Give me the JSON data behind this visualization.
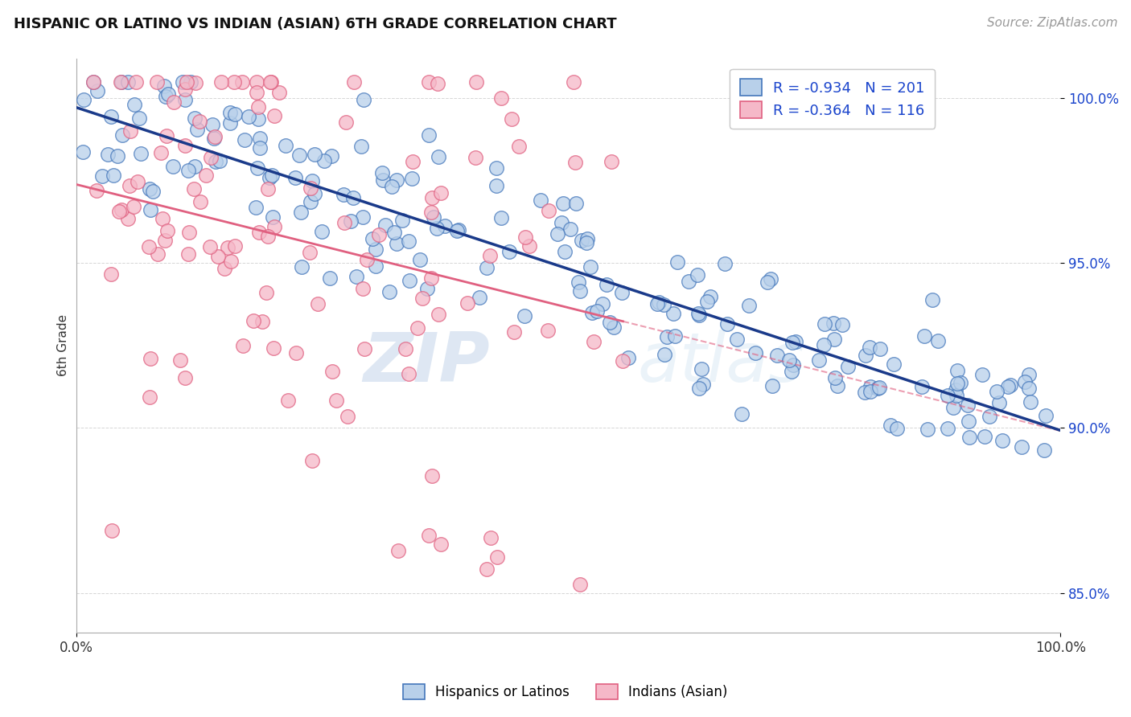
{
  "title": "HISPANIC OR LATINO VS INDIAN (ASIAN) 6TH GRADE CORRELATION CHART",
  "source": "Source: ZipAtlas.com",
  "ylabel": "6th Grade",
  "watermark_zip": "ZIP",
  "watermark_atlas": "atlas",
  "blue_R": -0.934,
  "blue_N": 201,
  "pink_R": -0.364,
  "pink_N": 116,
  "blue_fill": "#b8d0ea",
  "blue_edge": "#4477bb",
  "pink_fill": "#f5b8c8",
  "pink_edge": "#e06080",
  "blue_line_color": "#1a3a8a",
  "pink_line_color": "#e06080",
  "legend_text_color": "#1a44cc",
  "xmin": 0.0,
  "xmax": 1.0,
  "ymin": 0.838,
  "ymax": 1.012,
  "yticks": [
    0.85,
    0.9,
    0.95,
    1.0
  ],
  "ytick_labels": [
    "85.0%",
    "90.0%",
    "95.0%",
    "100.0%"
  ],
  "title_fontsize": 13,
  "source_fontsize": 11,
  "legend_blue_label": "Hispanics or Latinos",
  "legend_pink_label": "Indians (Asian)",
  "blue_seed": 42,
  "pink_seed": 99,
  "background_color": "#ffffff",
  "grid_color": "#cccccc"
}
